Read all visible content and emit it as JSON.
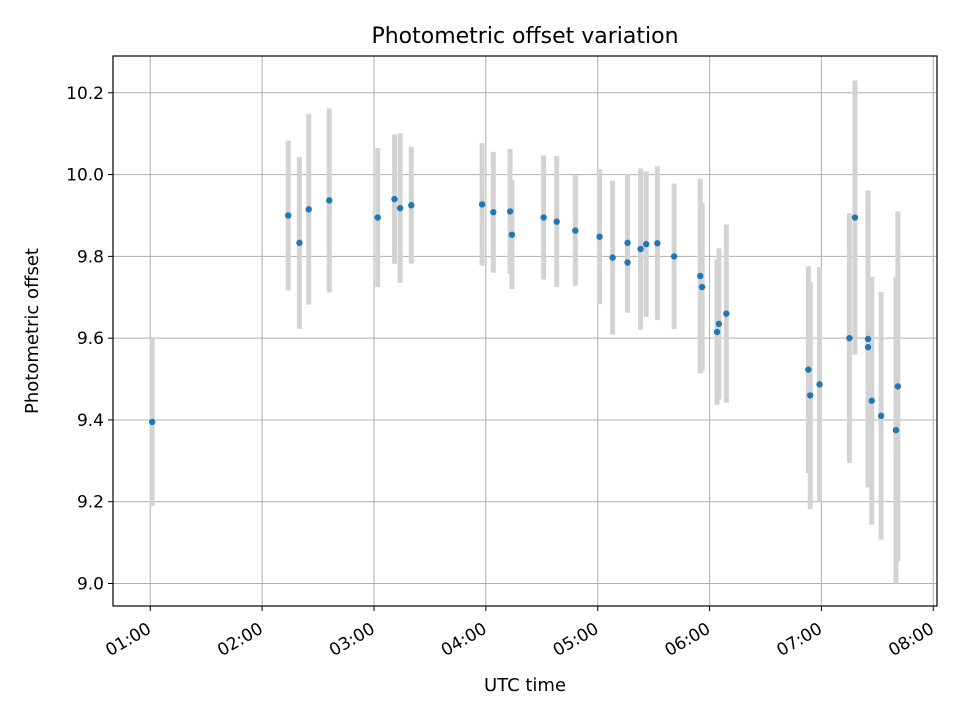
{
  "chart_data": {
    "type": "scatter",
    "title": "Photometric offset variation",
    "xlabel": "UTC time",
    "ylabel": "Photometric offset",
    "x_ticks": [
      "01:00",
      "02:00",
      "03:00",
      "04:00",
      "05:00",
      "06:00",
      "07:00",
      "08:00"
    ],
    "y_ticks": [
      "9.0",
      "9.2",
      "9.4",
      "9.6",
      "9.8",
      "10.0",
      "10.2"
    ],
    "xlim": [
      "00:40",
      "08:02"
    ],
    "ylim": [
      8.945,
      10.29
    ],
    "grid": true,
    "colors": {
      "point": "#1f77b4",
      "errorbar": "#d3d3d3",
      "grid": "#b0b0b0"
    },
    "points": [
      {
        "x": "01:01",
        "y": 9.395,
        "err": 0.205
      },
      {
        "x": "02:14",
        "y": 9.9,
        "err": 0.183
      },
      {
        "x": "02:20",
        "y": 9.833,
        "err": 0.21
      },
      {
        "x": "02:25",
        "y": 9.915,
        "err": 0.233
      },
      {
        "x": "02:36",
        "y": 9.937,
        "err": 0.225
      },
      {
        "x": "03:02",
        "y": 9.895,
        "err": 0.17
      },
      {
        "x": "03:11",
        "y": 9.94,
        "err": 0.158
      },
      {
        "x": "03:14",
        "y": 9.918,
        "err": 0.183
      },
      {
        "x": "03:20",
        "y": 9.925,
        "err": 0.143
      },
      {
        "x": "03:58",
        "y": 9.927,
        "err": 0.15
      },
      {
        "x": "04:04",
        "y": 9.908,
        "err": 0.148
      },
      {
        "x": "04:13",
        "y": 9.91,
        "err": 0.153
      },
      {
        "x": "04:14",
        "y": 9.853,
        "err": 0.133
      },
      {
        "x": "04:31",
        "y": 9.895,
        "err": 0.152
      },
      {
        "x": "04:38",
        "y": 9.885,
        "err": 0.16
      },
      {
        "x": "04:48",
        "y": 9.863,
        "err": 0.135
      },
      {
        "x": "05:01",
        "y": 9.848,
        "err": 0.165
      },
      {
        "x": "05:08",
        "y": 9.797,
        "err": 0.188
      },
      {
        "x": "05:16",
        "y": 9.833,
        "err": 0.168
      },
      {
        "x": "05:16",
        "y": 9.785,
        "err": 0.123
      },
      {
        "x": "05:23",
        "y": 9.818,
        "err": 0.197
      },
      {
        "x": "05:26",
        "y": 9.83,
        "err": 0.178
      },
      {
        "x": "05:32",
        "y": 9.832,
        "err": 0.188
      },
      {
        "x": "05:41",
        "y": 9.8,
        "err": 0.178
      },
      {
        "x": "05:55",
        "y": 9.752,
        "err": 0.238
      },
      {
        "x": "05:56",
        "y": 9.725,
        "err": 0.205
      },
      {
        "x": "06:04",
        "y": 9.615,
        "err": 0.178
      },
      {
        "x": "06:05",
        "y": 9.635,
        "err": 0.185
      },
      {
        "x": "06:09",
        "y": 9.66,
        "err": 0.218
      },
      {
        "x": "06:53",
        "y": 9.523,
        "err": 0.253
      },
      {
        "x": "06:54",
        "y": 9.46,
        "err": 0.278
      },
      {
        "x": "06:59",
        "y": 9.487,
        "err": 0.287
      },
      {
        "x": "07:15",
        "y": 9.6,
        "err": 0.305
      },
      {
        "x": "07:18",
        "y": 9.895,
        "err": 0.335
      },
      {
        "x": "07:25",
        "y": 9.578,
        "err": 0.34
      },
      {
        "x": "07:25",
        "y": 9.598,
        "err": 0.363
      },
      {
        "x": "07:27",
        "y": 9.447,
        "err": 0.303
      },
      {
        "x": "07:32",
        "y": 9.41,
        "err": 0.303
      },
      {
        "x": "07:40",
        "y": 9.375,
        "err": 0.375
      },
      {
        "x": "07:41",
        "y": 9.482,
        "err": 0.428
      }
    ]
  }
}
